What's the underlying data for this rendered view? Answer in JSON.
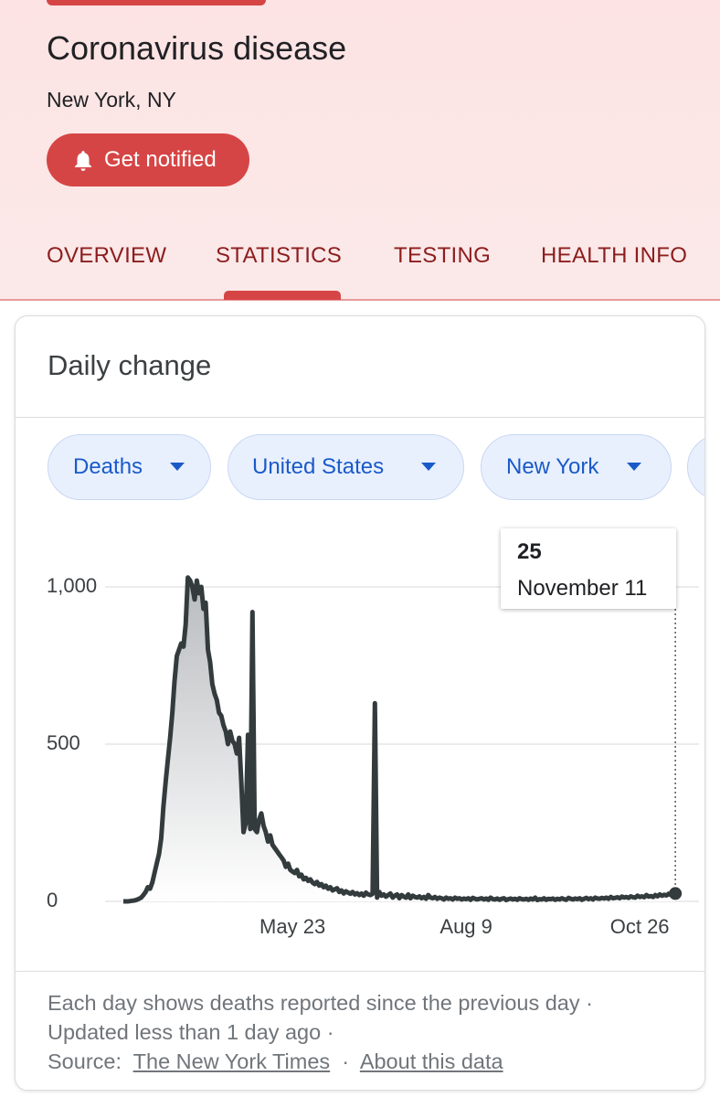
{
  "header": {
    "title": "Coronavirus disease",
    "location": "New York, NY",
    "button": "Get notified",
    "tabs": [
      "OVERVIEW",
      "STATISTICS",
      "TESTING",
      "HEALTH INFO"
    ]
  },
  "card": {
    "title": "Daily change",
    "chips": [
      "Deaths",
      "United States",
      "New York"
    ]
  },
  "tooltip": {
    "date": "November 11"
  },
  "footer": {
    "note": "Each day shows deaths reported since the previous day · Updated less than 1 day ago ·",
    "source_label": "Source:",
    "separator": "·",
    "links": [
      "The New York Times",
      "About this data"
    ]
  },
  "chart_data": {
    "type": "line",
    "color": "#333b3d",
    "grid": true,
    "x": [
      "Mar 8",
      "Mar 9",
      "Mar 10",
      "Mar 11",
      "Mar 12",
      "Mar 13",
      "Mar 14",
      "Mar 15",
      "Mar 16",
      "Mar 17",
      "Mar 18",
      "Mar 19",
      "Mar 20",
      "Mar 21",
      "Mar 22",
      "Mar 23",
      "Mar 24",
      "Mar 25",
      "Mar 26",
      "Mar 27",
      "Mar 28",
      "Mar 29",
      "Mar 30",
      "Mar 31",
      "Apr 1",
      "Apr 2",
      "Apr 3",
      "Apr 4",
      "Apr 5",
      "Apr 6",
      "Apr 7",
      "Apr 8",
      "Apr 9",
      "Apr 10",
      "Apr 11",
      "Apr 12",
      "Apr 13",
      "Apr 14",
      "Apr 15",
      "Apr 16",
      "Apr 17",
      "Apr 18",
      "Apr 19",
      "Apr 20",
      "Apr 21",
      "Apr 22",
      "Apr 23",
      "Apr 24",
      "Apr 25",
      "Apr 26",
      "Apr 27",
      "Apr 28",
      "Apr 29",
      "Apr 30",
      "May 1",
      "May 2",
      "May 3",
      "May 4",
      "May 5",
      "May 6",
      "May 7",
      "May 8",
      "May 9",
      "May 10",
      "May 11",
      "May 12",
      "May 13",
      "May 14",
      "May 15",
      "May 16",
      "May 17",
      "May 18",
      "May 19",
      "May 20",
      "May 21",
      "May 22",
      "May 23",
      "May 24",
      "May 25",
      "May 26",
      "May 27",
      "May 28",
      "May 29",
      "May 30",
      "May 31",
      "Jun 1",
      "Jun 2",
      "Jun 3",
      "Jun 4",
      "Jun 5",
      "Jun 6",
      "Jun 7",
      "Jun 8",
      "Jun 9",
      "Jun 10",
      "Jun 11",
      "Jun 12",
      "Jun 13",
      "Jun 14",
      "Jun 15",
      "Jun 16",
      "Jun 17",
      "Jun 18",
      "Jun 19",
      "Jun 20",
      "Jun 21",
      "Jun 22",
      "Jun 23",
      "Jun 24",
      "Jun 25",
      "Jun 26",
      "Jun 27",
      "Jun 28",
      "Jun 29",
      "Jun 30",
      "Jul 1",
      "Jul 2",
      "Jul 3",
      "Jul 4",
      "Jul 5",
      "Jul 6",
      "Jul 7",
      "Jul 8",
      "Jul 9",
      "Jul 10",
      "Jul 11",
      "Jul 12",
      "Jul 13",
      "Jul 14",
      "Jul 15",
      "Jul 16",
      "Jul 17",
      "Jul 18",
      "Jul 19",
      "Jul 20",
      "Jul 21",
      "Jul 22",
      "Jul 23",
      "Jul 24",
      "Jul 25",
      "Jul 26",
      "Jul 27",
      "Jul 28",
      "Jul 29",
      "Jul 30",
      "Jul 31",
      "Aug 1",
      "Aug 2",
      "Aug 3",
      "Aug 4",
      "Aug 5",
      "Aug 6",
      "Aug 7",
      "Aug 8",
      "Aug 9",
      "Aug 10",
      "Aug 11",
      "Aug 12",
      "Aug 13",
      "Aug 14",
      "Aug 15",
      "Aug 16",
      "Aug 17",
      "Aug 18",
      "Aug 19",
      "Aug 20",
      "Aug 21",
      "Aug 22",
      "Aug 23",
      "Aug 24",
      "Aug 25",
      "Aug 26",
      "Aug 27",
      "Aug 28",
      "Aug 29",
      "Aug 30",
      "Aug 31",
      "Sep 1",
      "Sep 2",
      "Sep 3",
      "Sep 4",
      "Sep 5",
      "Sep 6",
      "Sep 7",
      "Sep 8",
      "Sep 9",
      "Sep 10",
      "Sep 11",
      "Sep 12",
      "Sep 13",
      "Sep 14",
      "Sep 15",
      "Sep 16",
      "Sep 17",
      "Sep 18",
      "Sep 19",
      "Sep 20",
      "Sep 21",
      "Sep 22",
      "Sep 23",
      "Sep 24",
      "Sep 25",
      "Sep 26",
      "Sep 27",
      "Sep 28",
      "Sep 29",
      "Sep 30",
      "Oct 1",
      "Oct 2",
      "Oct 3",
      "Oct 4",
      "Oct 5",
      "Oct 6",
      "Oct 7",
      "Oct 8",
      "Oct 9",
      "Oct 10",
      "Oct 11",
      "Oct 12",
      "Oct 13",
      "Oct 14",
      "Oct 15",
      "Oct 16",
      "Oct 17",
      "Oct 18",
      "Oct 19",
      "Oct 20",
      "Oct 21",
      "Oct 22",
      "Oct 23",
      "Oct 24",
      "Oct 25",
      "Oct 26",
      "Oct 27",
      "Oct 28",
      "Oct 29",
      "Oct 30",
      "Oct 31",
      "Nov 1",
      "Nov 2",
      "Nov 3",
      "Nov 4",
      "Nov 5",
      "Nov 6",
      "Nov 7",
      "Nov 8",
      "Nov 9",
      "Nov 10",
      "Nov 11"
    ],
    "values": [
      0,
      0,
      0,
      1,
      2,
      3,
      5,
      8,
      12,
      20,
      30,
      45,
      40,
      60,
      90,
      120,
      150,
      200,
      300,
      380,
      450,
      520,
      600,
      700,
      780,
      800,
      820,
      810,
      880,
      1030,
      1020,
      1000,
      960,
      1020,
      980,
      1000,
      930,
      950,
      800,
      760,
      690,
      660,
      640,
      600,
      590,
      560,
      540,
      500,
      540,
      510,
      500,
      470,
      520,
      380,
      220,
      250,
      530,
      230,
      920,
      230,
      220,
      260,
      280,
      240,
      220,
      190,
      210,
      180,
      170,
      160,
      150,
      140,
      130,
      110,
      120,
      100,
      95,
      90,
      100,
      80,
      85,
      70,
      75,
      65,
      70,
      60,
      55,
      62,
      50,
      55,
      45,
      50,
      40,
      45,
      35,
      38,
      42,
      30,
      35,
      25,
      32,
      28,
      24,
      30,
      22,
      26,
      20,
      25,
      18,
      28,
      22,
      20,
      24,
      630,
      12,
      30,
      18,
      22,
      15,
      20,
      25,
      12,
      18,
      22,
      10,
      20,
      15,
      12,
      22,
      10,
      18,
      14,
      12,
      16,
      10,
      14,
      8,
      20,
      12,
      10,
      14,
      8,
      12,
      10,
      6,
      12,
      8,
      10,
      6,
      12,
      8,
      10,
      6,
      9,
      7,
      10,
      5,
      11,
      8,
      6,
      8,
      10,
      6,
      9,
      5,
      12,
      7,
      6,
      9,
      5,
      8,
      10,
      4,
      7,
      9,
      6,
      8,
      5,
      10,
      7,
      6,
      8,
      5,
      9,
      6,
      12,
      4,
      7,
      6,
      10,
      5,
      8,
      7,
      9,
      5,
      8,
      6,
      10,
      7,
      5,
      11,
      8,
      6,
      9,
      7,
      10,
      5,
      8,
      11,
      7,
      10,
      6,
      12,
      9,
      8,
      11,
      9,
      12,
      8,
      14,
      10,
      11,
      13,
      10,
      15,
      12,
      14,
      11,
      16,
      13,
      12,
      18,
      14,
      16,
      13,
      20,
      15,
      17,
      14,
      20,
      16,
      22,
      18,
      21,
      19,
      24,
      20,
      23,
      25
    ],
    "ylim": [
      0,
      1100
    ],
    "yticks": [
      0,
      500,
      {
        "value": 1000,
        "label": "1,000"
      }
    ],
    "xticks": [
      "May 23",
      "Aug 9",
      "Oct 26"
    ]
  }
}
